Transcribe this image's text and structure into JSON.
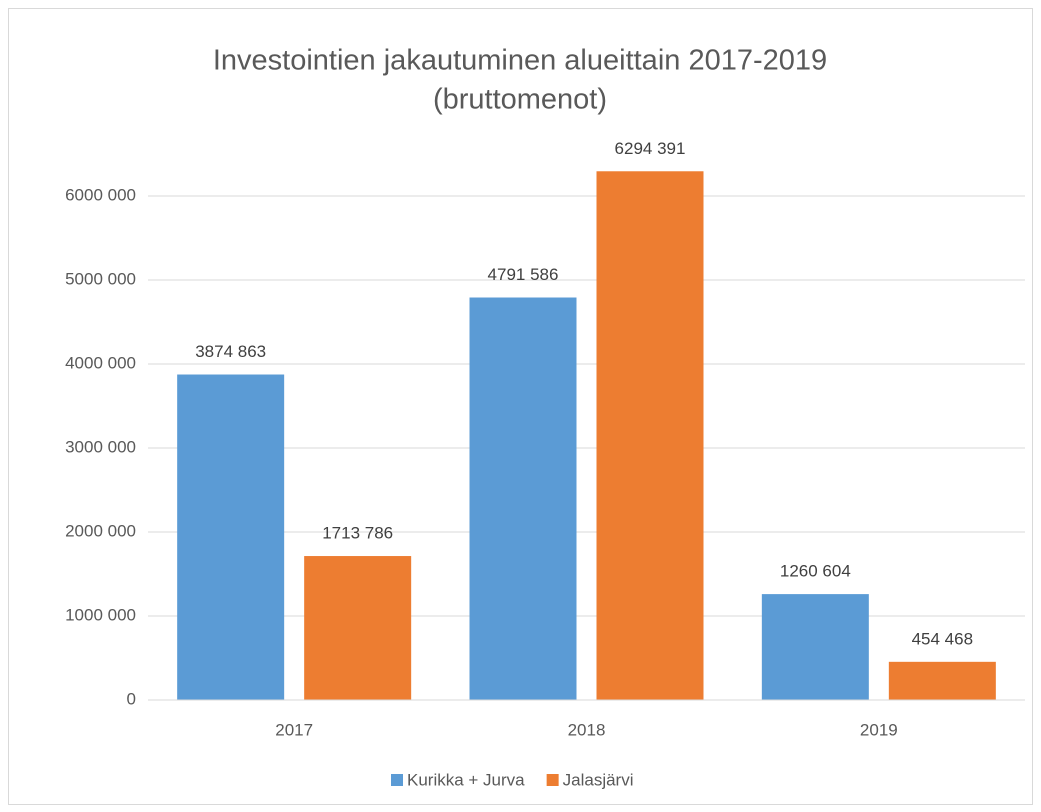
{
  "chart_data": {
    "type": "bar",
    "title": [
      "Investointien jakautuminen alueittain 2017-2019",
      "(bruttomenot)"
    ],
    "categories": [
      "2017",
      "2018",
      "2019"
    ],
    "series": [
      {
        "name": "Kurikka + Jurva",
        "color": "#5b9bd5",
        "values": [
          3874863,
          4791586,
          1260604
        ],
        "value_labels": [
          "3874 863",
          "4791 586",
          "1260 604"
        ]
      },
      {
        "name": "Jalasjärvi",
        "color": "#ed7d31",
        "values": [
          1713786,
          6294391,
          454468
        ],
        "value_labels": [
          "1713 786",
          "6294 391",
          "454 468"
        ]
      }
    ],
    "ylim": [
      0,
      6000000
    ],
    "yticks": [
      0,
      {
        "value": 1000000,
        "label": "1000 000"
      },
      {
        "value": 2000000,
        "label": "2000 000"
      },
      {
        "value": 3000000,
        "label": "3000 000"
      },
      {
        "value": 4000000,
        "label": "4000 000"
      },
      {
        "value": 5000000,
        "label": "5000 000"
      },
      {
        "value": 6000000,
        "label": "6000 000"
      }
    ],
    "grid": true,
    "legend": "bottom"
  }
}
